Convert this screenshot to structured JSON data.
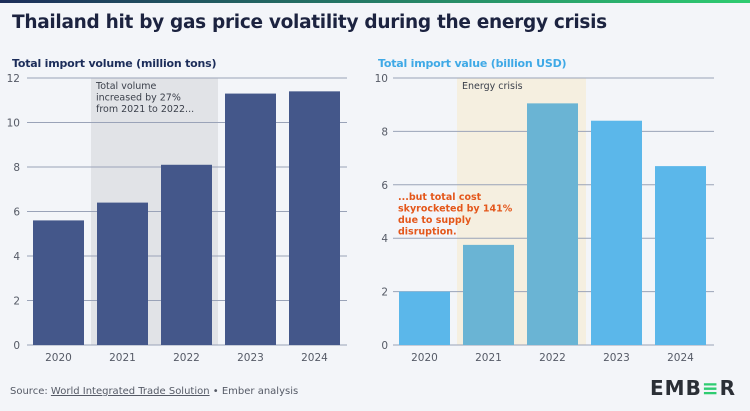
{
  "title": "Thailand hit by gas price volatility during the energy crisis",
  "footer": {
    "source_prefix": "Source:",
    "source_link": "World Integrated Trade Solution",
    "source_suffix": "• Ember analysis",
    "logo": "EMBER"
  },
  "colors": {
    "volume_bar": "#44578a",
    "value_bar": "#5bb7ea",
    "value_bar_crisis": "#6ab4d4",
    "volume_shade": "#e1e3e7",
    "value_shade": "#f5efe0",
    "annotation_red": "#e4571b"
  },
  "chart_data": [
    {
      "type": "bar",
      "title": "Total import volume (million tons)",
      "categories": [
        "2020",
        "2021",
        "2022",
        "2023",
        "2024"
      ],
      "values": [
        5.6,
        6.4,
        8.1,
        11.3,
        11.4
      ],
      "ylim": [
        0,
        12
      ],
      "yticks": [
        0,
        2,
        4,
        6,
        8,
        10,
        12
      ],
      "grid": true,
      "highlight_range": [
        "2021",
        "2022"
      ],
      "annotation": [
        "Total volume",
        "increased by 27%",
        "from 2021 to 2022..."
      ]
    },
    {
      "type": "bar",
      "title": "Total import value (billion USD)",
      "categories": [
        "2020",
        "2021",
        "2022",
        "2023",
        "2024"
      ],
      "values": [
        2.0,
        3.75,
        9.05,
        8.4,
        6.7
      ],
      "ylim": [
        0,
        10
      ],
      "yticks": [
        0,
        2,
        4,
        6,
        8,
        10
      ],
      "grid": true,
      "highlight_range": [
        "2021",
        "2022"
      ],
      "highlight_label": "Energy crisis",
      "annotation": [
        "...but total cost",
        "skyrocketed by 141%",
        "due to supply",
        "disruption."
      ]
    }
  ]
}
